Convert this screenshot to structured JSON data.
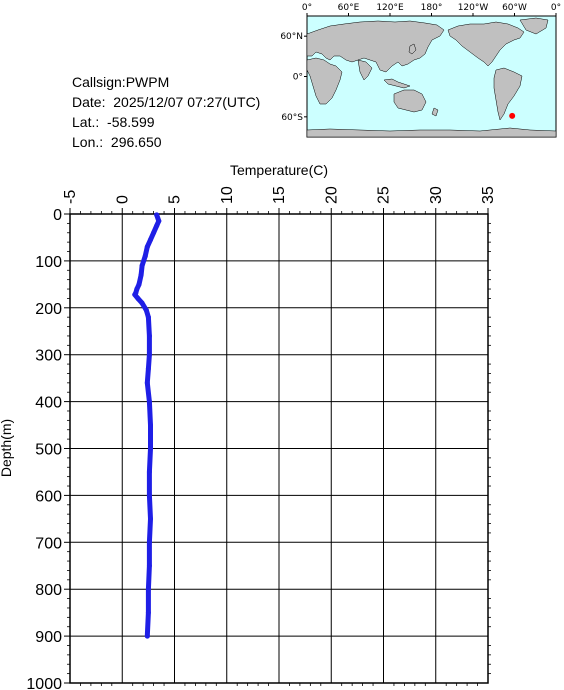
{
  "station": {
    "callsign_label": "Callsign:",
    "callsign": "PWPM",
    "date_label": "Date:",
    "date": "2025/12/07 07:27(UTC)",
    "lat_label": "Lat.:",
    "lat": "-58.599",
    "lon_label": "Lon.:",
    "lon": "296.650"
  },
  "map": {
    "top_labels": [
      "0°",
      "60°E",
      "120°E",
      "180°",
      "120°W",
      "60°W",
      "0°"
    ],
    "side_labels": [
      "60°N",
      "0°",
      "60°S"
    ],
    "ocean_color": "#ccffff",
    "land_color": "#c0c0c0",
    "marker_color": "#ff0000",
    "marker": {
      "lon": 296.65,
      "lat": -58.599
    }
  },
  "chart_data": {
    "type": "line",
    "title": "",
    "xlabel": "Temperature(C)",
    "ylabel": "Depth(m)",
    "xlim": [
      -5,
      35
    ],
    "ylim": [
      1000,
      0
    ],
    "x_ticks": [
      "-5",
      "0",
      "5",
      "10",
      "15",
      "20",
      "25",
      "30",
      "35"
    ],
    "y_ticks": [
      "0",
      "100",
      "200",
      "300",
      "400",
      "500",
      "600",
      "700",
      "800",
      "900",
      "1000"
    ],
    "grid": true,
    "series_color": "#1f1fe6",
    "series": [
      {
        "name": "",
        "x": [
          3.3,
          3.5,
          3.3,
          3.0,
          2.7,
          2.4,
          2.2,
          1.9,
          1.8,
          1.6,
          1.4,
          1.3,
          1.2,
          1.5,
          1.9,
          2.3,
          2.5,
          2.6,
          2.6,
          2.5,
          2.4,
          2.6,
          2.7,
          2.7,
          2.6,
          2.6,
          2.7,
          2.6,
          2.6,
          2.5,
          2.5,
          2.4
        ],
        "y": [
          2,
          15,
          25,
          40,
          55,
          70,
          90,
          110,
          130,
          150,
          160,
          168,
          172,
          180,
          190,
          205,
          220,
          260,
          300,
          330,
          360,
          400,
          450,
          500,
          550,
          600,
          650,
          700,
          750,
          800,
          850,
          900
        ]
      }
    ]
  }
}
